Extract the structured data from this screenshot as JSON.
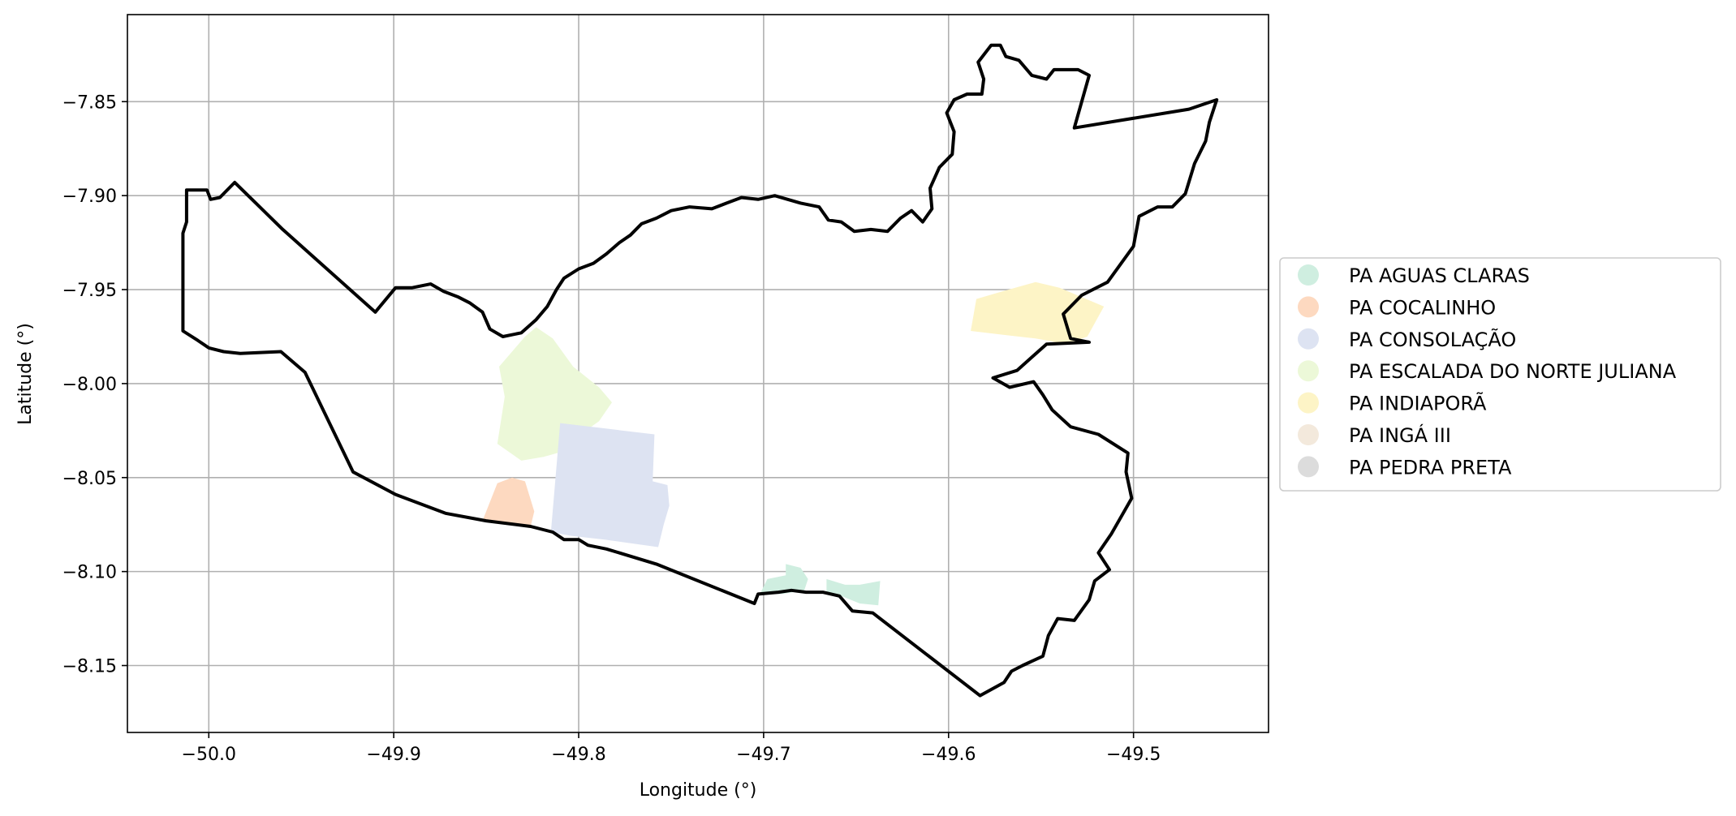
{
  "chart_data": {
    "type": "map",
    "xlabel": "Longitude (°)",
    "ylabel": "Latitude (°)",
    "xlim": [
      -50.044,
      -49.427
    ],
    "ylim": [
      -8.1856,
      -7.8037
    ],
    "grid": true,
    "legend_placement": "right",
    "x_ticks": [
      {
        "value": -50.0,
        "label": "−50.0"
      },
      {
        "value": -49.9,
        "label": "−49.9"
      },
      {
        "value": -49.8,
        "label": "−49.8"
      },
      {
        "value": -49.7,
        "label": "−49.7"
      },
      {
        "value": -49.6,
        "label": "−49.6"
      },
      {
        "value": -49.5,
        "label": "−49.5"
      }
    ],
    "y_ticks": [
      {
        "value": -7.85,
        "label": "−7.85"
      },
      {
        "value": -7.9,
        "label": "−7.90"
      },
      {
        "value": -7.95,
        "label": "−7.95"
      },
      {
        "value": -8.0,
        "label": "−8.00"
      },
      {
        "value": -8.05,
        "label": "−8.05"
      },
      {
        "value": -8.1,
        "label": "−8.10"
      },
      {
        "value": -8.15,
        "label": "−8.15"
      }
    ],
    "legend": [
      {
        "name": "PA AGUAS CLARAS",
        "color": "#cfeee0"
      },
      {
        "name": "PA COCALINHO",
        "color": "#fdd9c0"
      },
      {
        "name": "PA CONSOLAÇÃO",
        "color": "#dde3f2"
      },
      {
        "name": "PA ESCALADA DO NORTE JULIANA",
        "color": "#ecf8d8"
      },
      {
        "name": "PA INDIAPORÃ",
        "color": "#fdf4c6"
      },
      {
        "name": "PA INGÁ III",
        "color": "#f3e9dc"
      },
      {
        "name": "PA PEDRA PRETA",
        "color": "#dcdcdc"
      }
    ],
    "boundary": [
      [
        -49.455,
        -7.849
      ],
      [
        -49.47,
        -7.854
      ],
      [
        -49.532,
        -7.864
      ],
      [
        -49.524,
        -7.836
      ],
      [
        -49.53,
        -7.833
      ],
      [
        -49.543,
        -7.833
      ],
      [
        -49.547,
        -7.838
      ],
      [
        -49.555,
        -7.836
      ],
      [
        -49.562,
        -7.828
      ],
      [
        -49.569,
        -7.826
      ],
      [
        -49.572,
        -7.82
      ],
      [
        -49.577,
        -7.82
      ],
      [
        -49.584,
        -7.829
      ],
      [
        -49.581,
        -7.838
      ],
      [
        -49.582,
        -7.846
      ],
      [
        -49.59,
        -7.846
      ],
      [
        -49.597,
        -7.849
      ],
      [
        -49.601,
        -7.856
      ],
      [
        -49.597,
        -7.866
      ],
      [
        -49.598,
        -7.878
      ],
      [
        -49.605,
        -7.885
      ],
      [
        -49.61,
        -7.896
      ],
      [
        -49.609,
        -7.907
      ],
      [
        -49.614,
        -7.914
      ],
      [
        -49.62,
        -7.908
      ],
      [
        -49.626,
        -7.912
      ],
      [
        -49.633,
        -7.919
      ],
      [
        -49.642,
        -7.918
      ],
      [
        -49.651,
        -7.919
      ],
      [
        -49.658,
        -7.914
      ],
      [
        -49.665,
        -7.913
      ],
      [
        -49.67,
        -7.906
      ],
      [
        -49.68,
        -7.904
      ],
      [
        -49.687,
        -7.902
      ],
      [
        -49.694,
        -7.9
      ],
      [
        -49.703,
        -7.902
      ],
      [
        -49.712,
        -7.901
      ],
      [
        -49.72,
        -7.904
      ],
      [
        -49.728,
        -7.907
      ],
      [
        -49.74,
        -7.906
      ],
      [
        -49.75,
        -7.908
      ],
      [
        -49.758,
        -7.912
      ],
      [
        -49.766,
        -7.915
      ],
      [
        -49.772,
        -7.921
      ],
      [
        -49.778,
        -7.925
      ],
      [
        -49.785,
        -7.931
      ],
      [
        -49.792,
        -7.936
      ],
      [
        -49.8,
        -7.939
      ],
      [
        -49.808,
        -7.944
      ],
      [
        -49.812,
        -7.95
      ],
      [
        -49.817,
        -7.959
      ],
      [
        -49.823,
        -7.966
      ],
      [
        -49.831,
        -7.973
      ],
      [
        -49.841,
        -7.975
      ],
      [
        -49.848,
        -7.971
      ],
      [
        -49.852,
        -7.962
      ],
      [
        -49.859,
        -7.957
      ],
      [
        -49.865,
        -7.954
      ],
      [
        -49.873,
        -7.951
      ],
      [
        -49.88,
        -7.947
      ],
      [
        -49.89,
        -7.949
      ],
      [
        -49.899,
        -7.949
      ],
      [
        -49.91,
        -7.962
      ],
      [
        -49.96,
        -7.918
      ],
      [
        -49.986,
        -7.893
      ],
      [
        -49.994,
        -7.901
      ],
      [
        -49.999,
        -7.902
      ],
      [
        -50.001,
        -7.897
      ],
      [
        -50.012,
        -7.897
      ],
      [
        -50.012,
        -7.914
      ],
      [
        -50.014,
        -7.92
      ],
      [
        -50.014,
        -7.972
      ],
      [
        -50.006,
        -7.977
      ],
      [
        -50.0,
        -7.981
      ],
      [
        -49.992,
        -7.983
      ],
      [
        -49.983,
        -7.984
      ],
      [
        -49.961,
        -7.983
      ],
      [
        -49.948,
        -7.994
      ],
      [
        -49.922,
        -8.047
      ],
      [
        -49.899,
        -8.059
      ],
      [
        -49.872,
        -8.069
      ],
      [
        -49.85,
        -8.073
      ],
      [
        -49.826,
        -8.076
      ],
      [
        -49.814,
        -8.079
      ],
      [
        -49.808,
        -8.083
      ],
      [
        -49.8,
        -8.083
      ],
      [
        -49.795,
        -8.086
      ],
      [
        -49.785,
        -8.088
      ],
      [
        -49.758,
        -8.096
      ],
      [
        -49.705,
        -8.117
      ],
      [
        -49.703,
        -8.112
      ],
      [
        -49.692,
        -8.111
      ],
      [
        -49.685,
        -8.11
      ],
      [
        -49.677,
        -8.111
      ],
      [
        -49.668,
        -8.111
      ],
      [
        -49.659,
        -8.113
      ],
      [
        -49.652,
        -8.121
      ],
      [
        -49.641,
        -8.122
      ],
      [
        -49.583,
        -8.166
      ],
      [
        -49.57,
        -8.159
      ],
      [
        -49.566,
        -8.153
      ],
      [
        -49.56,
        -8.15
      ],
      [
        -49.549,
        -8.145
      ],
      [
        -49.546,
        -8.134
      ],
      [
        -49.541,
        -8.125
      ],
      [
        -49.532,
        -8.126
      ],
      [
        -49.524,
        -8.115
      ],
      [
        -49.521,
        -8.105
      ],
      [
        -49.513,
        -8.099
      ],
      [
        -49.519,
        -8.09
      ],
      [
        -49.512,
        -8.08
      ],
      [
        -49.501,
        -8.061
      ],
      [
        -49.504,
        -8.047
      ],
      [
        -49.503,
        -8.037
      ],
      [
        -49.519,
        -8.027
      ],
      [
        -49.534,
        -8.023
      ],
      [
        -49.544,
        -8.014
      ],
      [
        -49.549,
        -8.006
      ],
      [
        -49.554,
        -7.999
      ],
      [
        -49.567,
        -8.002
      ],
      [
        -49.576,
        -7.997
      ],
      [
        -49.563,
        -7.993
      ],
      [
        -49.547,
        -7.979
      ],
      [
        -49.524,
        -7.978
      ],
      [
        -49.534,
        -7.976
      ],
      [
        -49.538,
        -7.963
      ],
      [
        -49.528,
        -7.953
      ],
      [
        -49.514,
        -7.946
      ],
      [
        -49.5,
        -7.927
      ],
      [
        -49.497,
        -7.911
      ],
      [
        -49.487,
        -7.906
      ],
      [
        -49.479,
        -7.906
      ],
      [
        -49.472,
        -7.899
      ],
      [
        -49.467,
        -7.883
      ],
      [
        -49.461,
        -7.871
      ],
      [
        -49.459,
        -7.861
      ],
      [
        -49.455,
        -7.849
      ]
    ],
    "settlements": [
      {
        "legend_index": 4,
        "coords": [
          [
            -49.588,
            -7.972
          ],
          [
            -49.585,
            -7.955
          ],
          [
            -49.571,
            -7.951
          ],
          [
            -49.553,
            -7.946
          ],
          [
            -49.54,
            -7.949
          ],
          [
            -49.528,
            -7.954
          ],
          [
            -49.516,
            -7.959
          ],
          [
            -49.525,
            -7.975
          ],
          [
            -49.536,
            -7.979
          ],
          [
            -49.553,
            -7.976
          ],
          [
            -49.571,
            -7.974
          ]
        ]
      },
      {
        "legend_index": 3,
        "coords": [
          [
            -49.844,
            -8.032
          ],
          [
            -49.84,
            -8.007
          ],
          [
            -49.843,
            -7.991
          ],
          [
            -49.829,
            -7.975
          ],
          [
            -49.823,
            -7.97
          ],
          [
            -49.814,
            -7.976
          ],
          [
            -49.803,
            -7.991
          ],
          [
            -49.789,
            -8.002
          ],
          [
            -49.782,
            -8.01
          ],
          [
            -49.789,
            -8.02
          ],
          [
            -49.799,
            -8.027
          ],
          [
            -49.808,
            -8.036
          ],
          [
            -49.819,
            -8.039
          ],
          [
            -49.831,
            -8.041
          ]
        ]
      },
      {
        "legend_index": 2,
        "coords": [
          [
            -49.815,
            -8.079
          ],
          [
            -49.81,
            -8.021
          ],
          [
            -49.759,
            -8.027
          ],
          [
            -49.76,
            -8.052
          ],
          [
            -49.752,
            -8.054
          ],
          [
            -49.751,
            -8.065
          ],
          [
            -49.754,
            -8.075
          ],
          [
            -49.757,
            -8.087
          ],
          [
            -49.786,
            -8.083
          ],
          [
            -49.804,
            -8.081
          ]
        ]
      },
      {
        "legend_index": 1,
        "coords": [
          [
            -49.852,
            -8.073
          ],
          [
            -49.844,
            -8.053
          ],
          [
            -49.836,
            -8.05
          ],
          [
            -49.829,
            -8.052
          ],
          [
            -49.824,
            -8.068
          ],
          [
            -49.826,
            -8.076
          ],
          [
            -49.848,
            -8.074
          ]
        ]
      },
      {
        "legend_index": 0,
        "coords": [
          [
            -49.702,
            -8.112
          ],
          [
            -49.698,
            -8.104
          ],
          [
            -49.688,
            -8.102
          ],
          [
            -49.688,
            -8.096
          ],
          [
            -49.68,
            -8.098
          ],
          [
            -49.676,
            -8.104
          ],
          [
            -49.678,
            -8.11
          ],
          [
            -49.69,
            -8.112
          ]
        ]
      },
      {
        "legend_index": 0,
        "coords": [
          [
            -49.666,
            -8.104
          ],
          [
            -49.656,
            -8.107
          ],
          [
            -49.648,
            -8.107
          ],
          [
            -49.637,
            -8.105
          ],
          [
            -49.638,
            -8.118
          ],
          [
            -49.648,
            -8.117
          ],
          [
            -49.658,
            -8.113
          ],
          [
            -49.666,
            -8.111
          ]
        ]
      }
    ]
  }
}
